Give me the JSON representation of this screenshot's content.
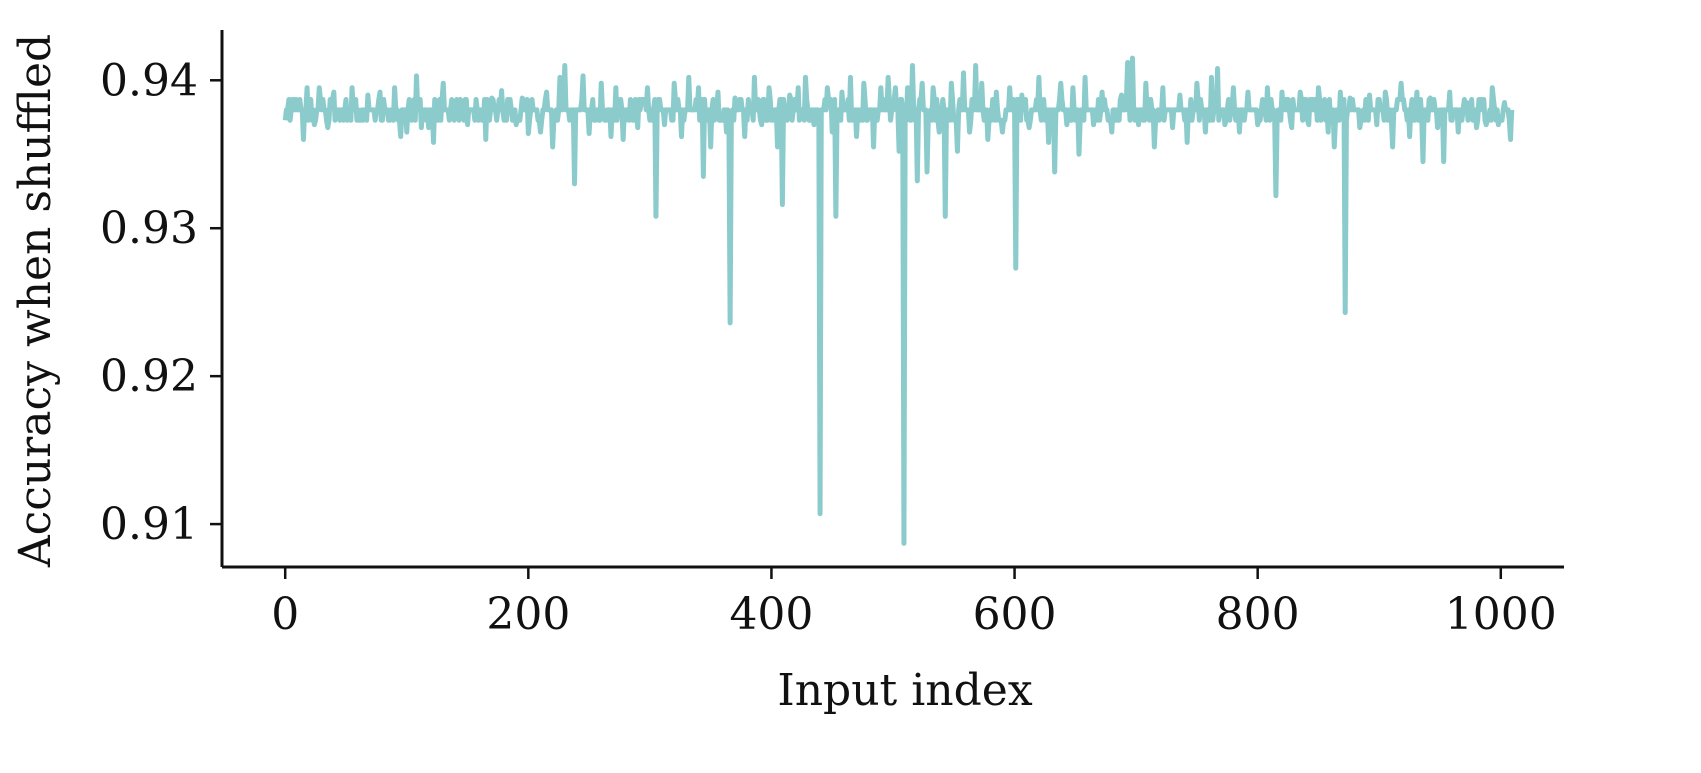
{
  "chart_data": {
    "type": "line",
    "title": "",
    "xlabel": "Input index",
    "ylabel": "Accuracy when shuffled",
    "xlim": [
      -52,
      1052
    ],
    "ylim": [
      0.9071,
      0.9434
    ],
    "xticks": [
      0,
      200,
      400,
      600,
      800,
      1000
    ],
    "xtick_labels": [
      "0",
      "200",
      "400",
      "600",
      "800",
      "1000"
    ],
    "yticks": [
      0.91,
      0.92,
      0.93,
      0.94
    ],
    "ytick_labels": [
      "0.91",
      "0.92",
      "0.93",
      "0.94"
    ],
    "grid": false,
    "legend": "none",
    "line_color": "#8ccbcb",
    "baseline": 0.938,
    "baseline_band": [
      0.9373,
      0.9387
    ],
    "n_points": 1010,
    "series": [
      {
        "values_sparse": [
          [
            15,
            0.936
          ],
          [
            18,
            0.9395
          ],
          [
            24,
            0.937
          ],
          [
            28,
            0.9395
          ],
          [
            35,
            0.9368
          ],
          [
            40,
            0.9392
          ],
          [
            55,
            0.9395
          ],
          [
            68,
            0.939
          ],
          [
            78,
            0.9392
          ],
          [
            90,
            0.9395
          ],
          [
            95,
            0.9362
          ],
          [
            100,
            0.9365
          ],
          [
            108,
            0.9403
          ],
          [
            112,
            0.9368
          ],
          [
            118,
            0.9368
          ],
          [
            122,
            0.9358
          ],
          [
            130,
            0.9398
          ],
          [
            138,
            0.9385
          ],
          [
            150,
            0.937
          ],
          [
            165,
            0.936
          ],
          [
            170,
            0.9388
          ],
          [
            178,
            0.9393
          ],
          [
            190,
            0.937
          ],
          [
            195,
            0.9388
          ],
          [
            200,
            0.9364
          ],
          [
            210,
            0.9365
          ],
          [
            215,
            0.9392
          ],
          [
            220,
            0.9355
          ],
          [
            226,
            0.9402
          ],
          [
            230,
            0.941
          ],
          [
            238,
            0.933
          ],
          [
            245,
            0.9403
          ],
          [
            250,
            0.9364
          ],
          [
            260,
            0.9398
          ],
          [
            268,
            0.9362
          ],
          [
            272,
            0.9395
          ],
          [
            278,
            0.936
          ],
          [
            285,
            0.9385
          ],
          [
            290,
            0.9368
          ],
          [
            298,
            0.9395
          ],
          [
            305,
            0.9308
          ],
          [
            312,
            0.937
          ],
          [
            320,
            0.9398
          ],
          [
            326,
            0.9362
          ],
          [
            332,
            0.9402
          ],
          [
            340,
            0.9395
          ],
          [
            344,
            0.9335
          ],
          [
            350,
            0.9355
          ],
          [
            356,
            0.9392
          ],
          [
            363,
            0.9365
          ],
          [
            366,
            0.9236
          ],
          [
            370,
            0.9388
          ],
          [
            378,
            0.9362
          ],
          [
            386,
            0.9402
          ],
          [
            392,
            0.937
          ],
          [
            398,
            0.9395
          ],
          [
            405,
            0.9355
          ],
          [
            409,
            0.9316
          ],
          [
            415,
            0.939
          ],
          [
            422,
            0.9395
          ],
          [
            428,
            0.9402
          ],
          [
            435,
            0.937
          ],
          [
            440,
            0.9107
          ],
          [
            446,
            0.9395
          ],
          [
            450,
            0.9365
          ],
          [
            453,
            0.9308
          ],
          [
            458,
            0.9392
          ],
          [
            465,
            0.9402
          ],
          [
            470,
            0.9362
          ],
          [
            476,
            0.9398
          ],
          [
            484,
            0.9355
          ],
          [
            490,
            0.9395
          ],
          [
            496,
            0.9402
          ],
          [
            502,
            0.9395
          ],
          [
            505,
            0.9352
          ],
          [
            509,
            0.9087
          ],
          [
            512,
            0.9395
          ],
          [
            516,
            0.941
          ],
          [
            520,
            0.9332
          ],
          [
            524,
            0.9398
          ],
          [
            528,
            0.9338
          ],
          [
            533,
            0.9395
          ],
          [
            538,
            0.9365
          ],
          [
            543,
            0.9308
          ],
          [
            548,
            0.9398
          ],
          [
            553,
            0.9352
          ],
          [
            558,
            0.9405
          ],
          [
            563,
            0.9365
          ],
          [
            568,
            0.941
          ],
          [
            573,
            0.9398
          ],
          [
            578,
            0.936
          ],
          [
            585,
            0.9392
          ],
          [
            590,
            0.9365
          ],
          [
            596,
            0.9395
          ],
          [
            601,
            0.9273
          ],
          [
            606,
            0.939
          ],
          [
            612,
            0.9368
          ],
          [
            620,
            0.9402
          ],
          [
            628,
            0.9358
          ],
          [
            633,
            0.9338
          ],
          [
            638,
            0.9398
          ],
          [
            643,
            0.937
          ],
          [
            648,
            0.9395
          ],
          [
            653,
            0.935
          ],
          [
            658,
            0.9402
          ],
          [
            665,
            0.937
          ],
          [
            672,
            0.9392
          ],
          [
            680,
            0.9365
          ],
          [
            688,
            0.939
          ],
          [
            693,
            0.9412
          ],
          [
            697,
            0.9415
          ],
          [
            702,
            0.937
          ],
          [
            708,
            0.9398
          ],
          [
            715,
            0.9355
          ],
          [
            722,
            0.9395
          ],
          [
            730,
            0.9368
          ],
          [
            736,
            0.939
          ],
          [
            742,
            0.9358
          ],
          [
            750,
            0.9398
          ],
          [
            757,
            0.9365
          ],
          [
            762,
            0.9402
          ],
          [
            767,
            0.9408
          ],
          [
            773,
            0.937
          ],
          [
            780,
            0.9395
          ],
          [
            785,
            0.9365
          ],
          [
            792,
            0.9392
          ],
          [
            800,
            0.937
          ],
          [
            808,
            0.9395
          ],
          [
            815,
            0.9322
          ],
          [
            820,
            0.9392
          ],
          [
            828,
            0.9368
          ],
          [
            835,
            0.9392
          ],
          [
            842,
            0.937
          ],
          [
            850,
            0.9395
          ],
          [
            858,
            0.9365
          ],
          [
            863,
            0.9355
          ],
          [
            868,
            0.9392
          ],
          [
            872,
            0.9243
          ],
          [
            876,
            0.9388
          ],
          [
            884,
            0.9368
          ],
          [
            892,
            0.939
          ],
          [
            898,
            0.937
          ],
          [
            905,
            0.9392
          ],
          [
            911,
            0.9355
          ],
          [
            918,
            0.9398
          ],
          [
            925,
            0.9362
          ],
          [
            931,
            0.9392
          ],
          [
            936,
            0.9345
          ],
          [
            942,
            0.9388
          ],
          [
            948,
            0.9368
          ],
          [
            953,
            0.9345
          ],
          [
            958,
            0.9392
          ],
          [
            965,
            0.9365
          ],
          [
            972,
            0.9385
          ],
          [
            980,
            0.9368
          ],
          [
            988,
            0.937
          ],
          [
            993,
            0.9395
          ],
          [
            998,
            0.937
          ],
          [
            1003,
            0.9385
          ],
          [
            1008,
            0.936
          ]
        ]
      }
    ]
  }
}
